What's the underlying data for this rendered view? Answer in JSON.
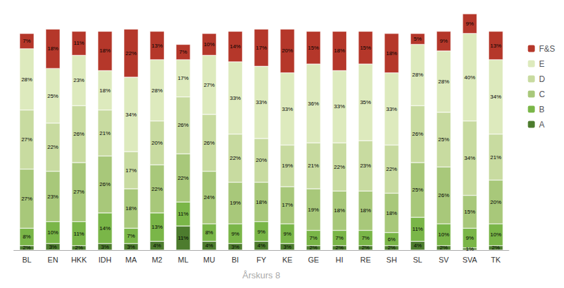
{
  "chart_data": {
    "type": "bar",
    "stacked": true,
    "xlabel": "Årskurs 8",
    "categories": [
      "BL",
      "EN",
      "HKK",
      "IDH",
      "MA",
      "M2",
      "ML",
      "MU",
      "BI",
      "FY",
      "KE",
      "GE",
      "HI",
      "RE",
      "SH",
      "SL",
      "SV",
      "SVA",
      "TK"
    ],
    "series": [
      {
        "name": "A",
        "color": "#4d7c2e",
        "values": [
          2,
          3,
          2,
          3,
          3,
          4,
          11,
          4,
          3,
          4,
          3,
          2,
          2,
          2,
          2,
          4,
          2,
          1,
          2
        ],
        "value_labels": [
          "2%",
          "3%",
          "2%",
          "3%",
          "3%",
          "4%",
          "11%",
          "4%",
          "3%",
          "4%",
          "3%",
          "2%",
          "2%",
          "2%",
          "2%",
          "4%",
          "2%",
          "1%",
          "2%"
        ]
      },
      {
        "name": "B",
        "color": "#7ab648",
        "values": [
          8,
          10,
          11,
          14,
          7,
          13,
          11,
          8,
          9,
          9,
          9,
          7,
          7,
          7,
          6,
          11,
          10,
          9,
          10
        ],
        "value_labels": [
          "8%",
          "10%",
          "11%",
          "14%",
          "7%",
          "13%",
          "11%",
          "8%",
          "9%",
          "9%",
          "9%",
          "7%",
          "7%",
          "7%",
          "6%",
          "11%",
          "10%",
          "9%",
          "10%"
        ]
      },
      {
        "name": "C",
        "color": "#a8c87a",
        "values": [
          27,
          23,
          27,
          26,
          18,
          22,
          22,
          24,
          19,
          18,
          17,
          19,
          18,
          18,
          18,
          25,
          26,
          15,
          20
        ],
        "value_labels": [
          "27%",
          "23%",
          "27%",
          "26%",
          "18%",
          "22%",
          "22%",
          "24%",
          "19%",
          "18%",
          "17%",
          "19%",
          "18%",
          "18%",
          "18%",
          "25%",
          "26%",
          "15%",
          "20%"
        ]
      },
      {
        "name": "D",
        "color": "#c8dba0",
        "values": [
          27,
          22,
          26,
          21,
          17,
          20,
          26,
          26,
          22,
          20,
          19,
          21,
          22,
          23,
          22,
          26,
          25,
          34,
          21
        ],
        "value_labels": [
          "27%",
          "22%",
          "26%",
          "21%",
          "17%",
          "20%",
          "26%",
          "26%",
          "22%",
          "20%",
          "19%",
          "21%",
          "22%",
          "23%",
          "22%",
          "26%",
          "25%",
          "34%",
          "21%"
        ]
      },
      {
        "name": "E",
        "color": "#ddeabd",
        "values": [
          28,
          25,
          23,
          18,
          34,
          28,
          17,
          27,
          33,
          33,
          33,
          36,
          33,
          35,
          33,
          28,
          28,
          40,
          34
        ],
        "value_labels": [
          "28%",
          "25%",
          "23%",
          "18%",
          "34%",
          "28%",
          "17%",
          "27%",
          "33%",
          "33%",
          "33%",
          "36%",
          "33%",
          "35%",
          "33%",
          "28%",
          "28%",
          "40%",
          "34%"
        ]
      },
      {
        "name": "F&S",
        "color": "#b5372a",
        "values": [
          7,
          18,
          11,
          18,
          22,
          13,
          7,
          10,
          14,
          17,
          20,
          15,
          18,
          15,
          18,
          5,
          9,
          9,
          13
        ],
        "value_labels": [
          "7%",
          "18%",
          "11%",
          "18%",
          "22%",
          "13%",
          "7%",
          "10%",
          "14%",
          "17%",
          "20%",
          "15%",
          "18%",
          "15%",
          "18%",
          "5%",
          "9%",
          "9%",
          "13%"
        ]
      }
    ],
    "ylim": [
      0,
      108
    ],
    "yticks": [],
    "tick_labels": "x",
    "grid": false,
    "legend": "upper right",
    "data_labels": true
  }
}
